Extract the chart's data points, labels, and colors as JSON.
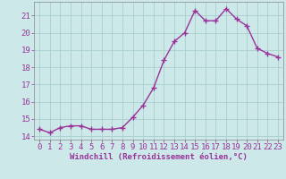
{
  "x": [
    0,
    1,
    2,
    3,
    4,
    5,
    6,
    7,
    8,
    9,
    10,
    11,
    12,
    13,
    14,
    15,
    16,
    17,
    18,
    19,
    20,
    21,
    22,
    23
  ],
  "y": [
    14.4,
    14.2,
    14.5,
    14.6,
    14.6,
    14.4,
    14.4,
    14.4,
    14.5,
    15.1,
    15.8,
    16.8,
    18.4,
    19.5,
    20.0,
    21.3,
    20.7,
    20.7,
    21.4,
    20.8,
    20.4,
    19.1,
    18.8,
    18.6
  ],
  "line_color": "#993399",
  "marker_color": "#993399",
  "bg_color": "#cce8e8",
  "grid_color": "#aacfcf",
  "axis_color": "#666666",
  "tick_color": "#993399",
  "xlabel": "Windchill (Refroidissement éolien,°C)",
  "ylabel_ticks": [
    14,
    15,
    16,
    17,
    18,
    19,
    20,
    21
  ],
  "xlim": [
    -0.5,
    23.5
  ],
  "ylim": [
    13.8,
    21.8
  ],
  "xtick_labels": [
    "0",
    "1",
    "2",
    "3",
    "4",
    "5",
    "6",
    "7",
    "8",
    "9",
    "10",
    "11",
    "12",
    "13",
    "14",
    "15",
    "16",
    "17",
    "18",
    "19",
    "20",
    "21",
    "22",
    "23"
  ],
  "font_color": "#993399",
  "font_size": 6.5,
  "marker_size": 2.5,
  "line_width": 1.0
}
